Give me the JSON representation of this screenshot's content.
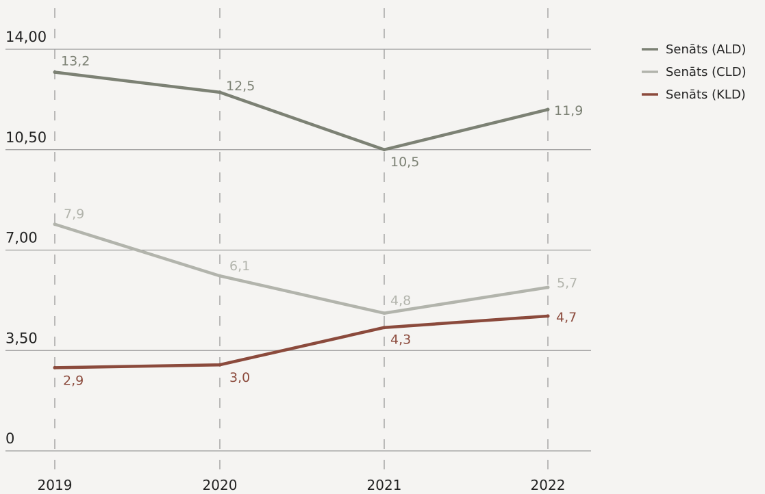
{
  "chart_data": {
    "type": "line",
    "x": [
      "2019",
      "2020",
      "2021",
      "2022"
    ],
    "ylim": [
      0,
      14
    ],
    "y_ticks": [
      {
        "value": 0,
        "label": "0"
      },
      {
        "value": 3.5,
        "label": "3,50"
      },
      {
        "value": 7,
        "label": "7,00"
      },
      {
        "value": 10.5,
        "label": "10,50"
      },
      {
        "value": 14,
        "label": "14,00"
      }
    ],
    "grid": {
      "horizontal": true,
      "vertical_dashed": true
    },
    "legend_position": "top-right",
    "series": [
      {
        "name": "Senāts (ALD)",
        "color": "#7c8174",
        "values": [
          13.2,
          12.5,
          10.5,
          11.9
        ],
        "labels": [
          "13,2",
          "12,5",
          "10,5",
          "11,9"
        ]
      },
      {
        "name": "Senāts (CLD)",
        "color": "#b2b4ac",
        "values": [
          7.9,
          6.1,
          4.8,
          5.7
        ],
        "labels": [
          "7,9",
          "6,1",
          "4,8",
          "5,7"
        ]
      },
      {
        "name": "Senāts (KLD)",
        "color": "#8b4a3c",
        "values": [
          2.9,
          3.0,
          4.3,
          4.7
        ],
        "labels": [
          "2,9",
          "3,0",
          "4,3",
          "4,7"
        ]
      }
    ]
  }
}
